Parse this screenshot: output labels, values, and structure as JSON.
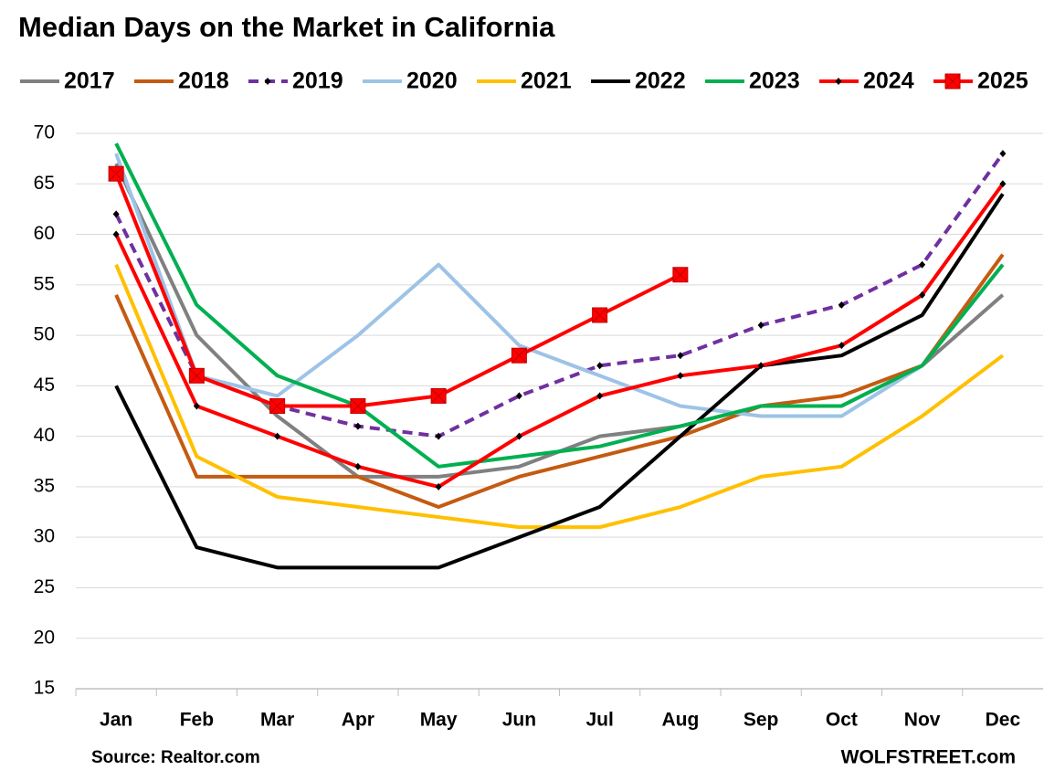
{
  "chart_data": {
    "type": "line",
    "title": "Median Days on the Market in California",
    "categories": [
      "Jan",
      "Feb",
      "Mar",
      "Apr",
      "May",
      "Jun",
      "Jul",
      "Aug",
      "Sep",
      "Oct",
      "Nov",
      "Dec"
    ],
    "series": [
      {
        "name": "2017",
        "color": "#808080",
        "values": [
          67,
          50,
          42,
          36,
          36,
          37,
          40,
          41,
          43,
          43,
          47,
          54
        ]
      },
      {
        "name": "2018",
        "color": "#c55a11",
        "values": [
          54,
          36,
          36,
          36,
          33,
          36,
          38,
          40,
          43,
          44,
          47,
          58
        ]
      },
      {
        "name": "2019",
        "color": "#7030a0",
        "dash": true,
        "marker": "diamond",
        "values": [
          62,
          46,
          43,
          41,
          40,
          44,
          47,
          48,
          51,
          53,
          57,
          68
        ]
      },
      {
        "name": "2020",
        "color": "#9dc3e6",
        "values": [
          68,
          46,
          44,
          50,
          57,
          49,
          46,
          43,
          42,
          42,
          47,
          57
        ]
      },
      {
        "name": "2021",
        "color": "#ffc000",
        "values": [
          57,
          38,
          34,
          33,
          32,
          31,
          31,
          33,
          36,
          37,
          42,
          48
        ]
      },
      {
        "name": "2022",
        "color": "#000000",
        "values": [
          45,
          29,
          27,
          27,
          27,
          30,
          33,
          40,
          47,
          48,
          52,
          64
        ]
      },
      {
        "name": "2023",
        "color": "#00b050",
        "values": [
          69,
          53,
          46,
          43,
          37,
          38,
          39,
          41,
          43,
          43,
          47,
          57
        ]
      },
      {
        "name": "2024",
        "color": "#ff0000",
        "marker": "diamond",
        "values": [
          60,
          43,
          40,
          37,
          35,
          40,
          44,
          46,
          47,
          49,
          54,
          65
        ]
      },
      {
        "name": "2025",
        "color": "#ff0000",
        "marker": "square",
        "values": [
          66,
          46,
          43,
          43,
          44,
          48,
          52,
          56,
          null,
          null,
          null,
          null
        ]
      }
    ],
    "ylim": [
      15,
      70
    ],
    "yticks": [
      15,
      20,
      25,
      30,
      35,
      40,
      45,
      50,
      55,
      60,
      65,
      70
    ],
    "grid": true,
    "source": "Source: Realtor.com",
    "credit": "WOLFSTREET.com"
  }
}
